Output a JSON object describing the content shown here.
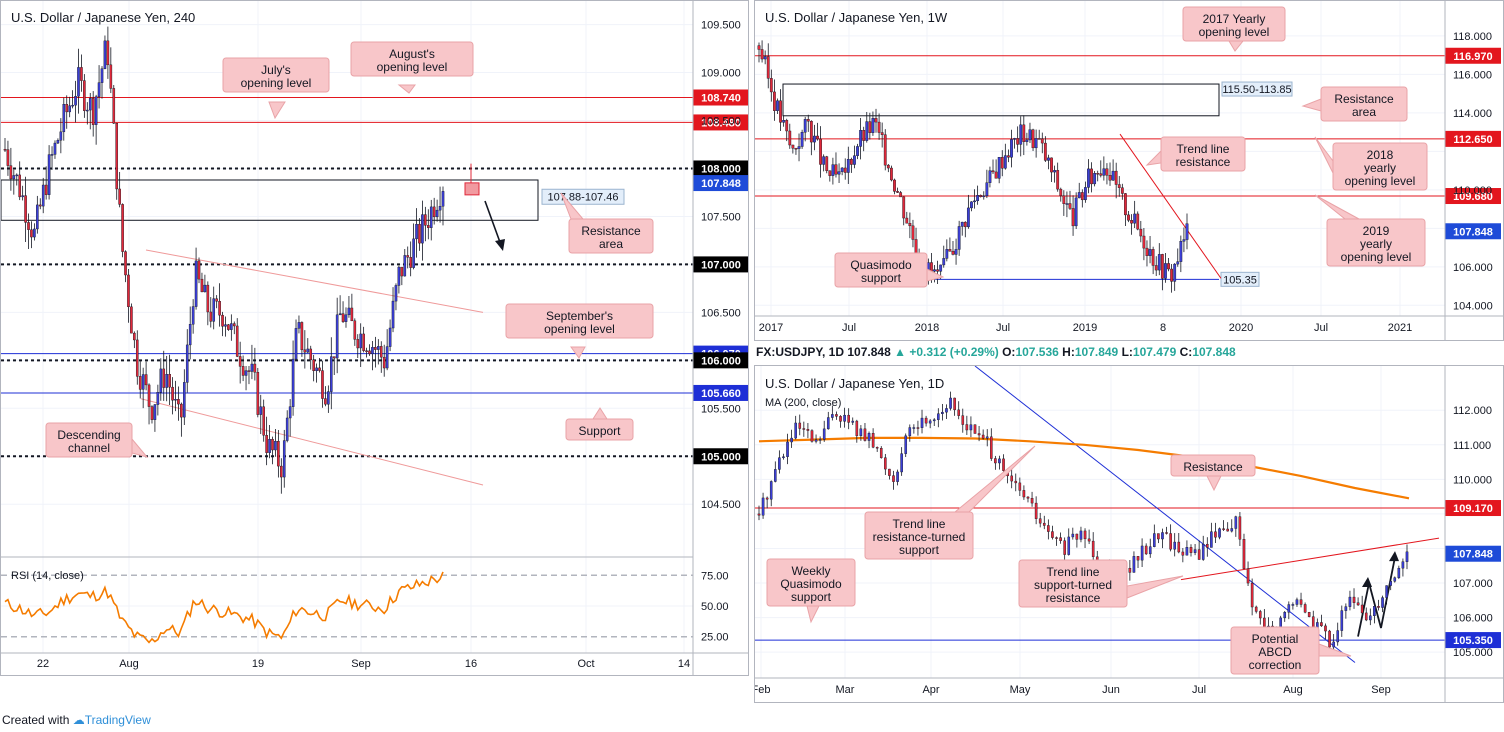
{
  "footer": {
    "created_with": "Created with",
    "brand": "TradingView"
  },
  "colors": {
    "red_level": "#e3161e",
    "blue_level": "#1e2fd6",
    "black_level": "#131722",
    "ma": "#f57c00",
    "rsi": "#f57c00",
    "bull": "#3c3fd6",
    "bear": "#e0283a",
    "callout": "#f8c6c9",
    "channel": "#ef9a9a"
  },
  "chart_data": [
    {
      "id": "h4",
      "type": "candlestick",
      "title": "U.S. Dollar / Japanese Yen, 240",
      "ylim": [
        104.2,
        109.6
      ],
      "y_ticks": [
        "109.500",
        "109.000",
        "108.500",
        "107.500",
        "106.500",
        "105.500",
        "104.500"
      ],
      "x_ticks": [
        "22",
        "Aug",
        "19",
        "Sep",
        "16",
        "Oct",
        "14"
      ],
      "price_path": [
        108.2,
        107.8,
        107.3,
        108.0,
        108.5,
        108.9,
        108.6,
        109.3,
        107.2,
        106.0,
        105.5,
        105.9,
        105.3,
        106.9,
        106.5,
        106.5,
        106.1,
        105.8,
        105.1,
        104.9,
        106.3,
        106.0,
        105.7,
        106.5,
        106.3,
        106.2,
        106.0,
        106.9,
        107.2,
        107.5,
        107.85
      ],
      "levels": [
        {
          "value": 108.74,
          "label": "108.740",
          "style": "red"
        },
        {
          "value": 108.48,
          "label": "108.480",
          "style": "red"
        },
        {
          "value": 108.0,
          "label": "108.000",
          "style": "dotted"
        },
        {
          "value": 107.848,
          "label": "107.848",
          "style": "current"
        },
        {
          "value": 107.0,
          "label": "107.000",
          "style": "dotted"
        },
        {
          "value": 106.07,
          "label": "106.070",
          "style": "blue"
        },
        {
          "value": 106.0,
          "label": "106.000",
          "style": "dotted"
        },
        {
          "value": 105.66,
          "label": "105.660",
          "style": "blue"
        },
        {
          "value": 105.0,
          "label": "105.000",
          "style": "dotted"
        }
      ],
      "zone": {
        "top": 107.88,
        "bottom": 107.46,
        "label": "107.88-107.46"
      },
      "callouts": [
        "July's opening level",
        "August's opening level",
        "Resistance area",
        "September's opening level",
        "Support",
        "Descending channel"
      ],
      "rsi": {
        "label": "RSI (14, close)",
        "ticks": [
          "75.00",
          "50.00",
          "25.00"
        ],
        "ylim": [
          15,
          85
        ],
        "values": [
          52,
          48,
          42,
          45,
          55,
          60,
          58,
          62,
          38,
          25,
          20,
          32,
          28,
          55,
          48,
          45,
          42,
          38,
          28,
          24,
          48,
          45,
          42,
          55,
          52,
          50,
          48,
          62,
          66,
          70,
          74
        ]
      }
    },
    {
      "id": "weekly",
      "type": "candlestick",
      "title": "U.S. Dollar / Japanese Yen, 1W",
      "ylim": [
        103.6,
        119.4
      ],
      "y_ticks": [
        "118.000",
        "116.000",
        "114.000",
        "110.000",
        "106.000",
        "104.000"
      ],
      "x_ticks": [
        "2017",
        "Jul",
        "2018",
        "Jul",
        "2019",
        "8",
        "2020",
        "Jul",
        "2021"
      ],
      "price_path": [
        117.5,
        114.5,
        112.0,
        113.5,
        111.0,
        110.5,
        112.5,
        113.5,
        111.0,
        108.5,
        106.0,
        105.5,
        107.5,
        109.5,
        110.5,
        112.0,
        113.0,
        112.5,
        110.5,
        108.5,
        110.5,
        111.5,
        109.5,
        108.0,
        106.5,
        105.5,
        107.85
      ],
      "levels": [
        {
          "value": 116.97,
          "label": "116.970",
          "style": "red"
        },
        {
          "value": 112.65,
          "label": "112.650",
          "style": "red"
        },
        {
          "value": 109.68,
          "label": "109.680",
          "style": "red"
        },
        {
          "value": 107.848,
          "label": "107.848",
          "style": "current"
        }
      ],
      "zone": {
        "top": 115.5,
        "bottom": 113.85,
        "label": "115.50-113.85"
      },
      "support_label": "105.35",
      "callouts": [
        "2017 Yearly opening level",
        "Resistance area",
        "Trend line resistance",
        "2018 yearly opening level",
        "2019 yearly opening level",
        "Quasimodo support"
      ]
    },
    {
      "id": "daily",
      "type": "candlestick",
      "title": "U.S. Dollar / Japanese Yen, 1D",
      "symbol_line": {
        "symbol": "FX:USDJPY, 1D",
        "price": "107.848",
        "change": "+0.312 (+0.29%)",
        "o_label": "O:",
        "o": "107.536",
        "h_label": "H:",
        "h": "107.849",
        "l_label": "L:",
        "l": "107.479",
        "c_label": "C:",
        "c": "107.848"
      },
      "ma_label": "MA (200, close)",
      "ylim": [
        104.6,
        112.7
      ],
      "y_ticks": [
        "112.000",
        "111.000",
        "110.000",
        "107.000",
        "106.000",
        "105.000"
      ],
      "x_ticks": [
        "Feb",
        "Mar",
        "Apr",
        "May",
        "Jun",
        "Jul",
        "Aug",
        "Sep"
      ],
      "price_path": [
        109.0,
        110.5,
        111.5,
        111.0,
        112.0,
        111.5,
        111.0,
        110.0,
        111.5,
        111.8,
        112.2,
        111.5,
        111.0,
        110.0,
        109.5,
        108.5,
        108.0,
        108.5,
        107.5,
        107.2,
        107.8,
        108.5,
        108.0,
        107.8,
        108.5,
        108.8,
        106.0,
        105.5,
        106.5,
        106.0,
        105.3,
        106.5,
        106.0,
        107.0,
        107.85
      ],
      "ma_path": [
        111.1,
        111.15,
        111.2,
        111.2,
        111.18,
        111.1,
        111.0,
        110.85,
        110.65,
        110.4,
        110.1,
        109.75,
        109.45
      ],
      "levels": [
        {
          "value": 109.17,
          "label": "109.170",
          "style": "red"
        },
        {
          "value": 107.848,
          "label": "107.848",
          "style": "current"
        },
        {
          "value": 105.35,
          "label": "105.350",
          "style": "blue"
        }
      ],
      "callouts": [
        "Resistance",
        "Trend line resistance-turned support",
        "Trend line support-turned resistance",
        "Weekly Quasimodo support",
        "Potential ABCD correction"
      ]
    }
  ]
}
